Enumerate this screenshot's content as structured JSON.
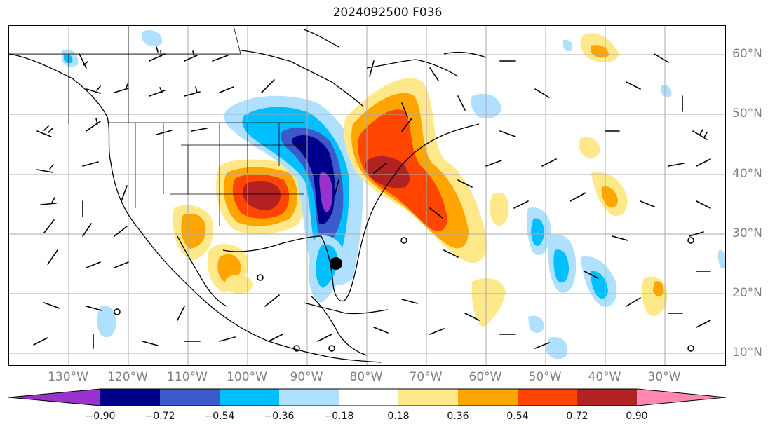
{
  "title": "2024092500 F036",
  "lon_labels": [
    "130°W",
    "120°W",
    "110°W",
    "100°W",
    "90°W",
    "80°W",
    "70°W",
    "60°W",
    "50°W",
    "40°W",
    "30°W"
  ],
  "lat_labels": [
    "60°N",
    "50°N",
    "40°N",
    "30°N",
    "20°N",
    "10°N"
  ],
  "colorbar": {
    "ticks": [
      "−0.90",
      "−0.72",
      "−0.54",
      "−0.36",
      "−0.18",
      "0.18",
      "0.36",
      "0.54",
      "0.72",
      "0.90"
    ],
    "colors": [
      "#9932cc",
      "#00008b",
      "#3a5bc9",
      "#00bfff",
      "#b0e0ff",
      "#ffffff",
      "#ffe88a",
      "#ffa500",
      "#ff4500",
      "#b22222",
      "#ff88b0"
    ]
  }
}
